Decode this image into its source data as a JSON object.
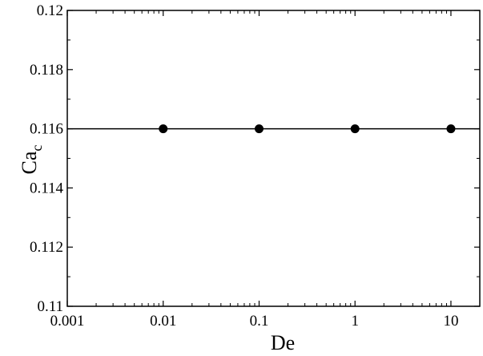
{
  "chart_data": {
    "type": "line",
    "title": "",
    "xlabel": "De",
    "ylabel": "Ca",
    "ylabel_subscript": "c",
    "xscale": "log",
    "xlim": [
      0.001,
      20
    ],
    "ylim": [
      0.11,
      0.12
    ],
    "x_ticks": [
      0.001,
      0.01,
      0.1,
      1,
      10
    ],
    "x_tick_labels": [
      "0.001",
      "0.01",
      "0.1",
      "1",
      "10"
    ],
    "y_ticks": [
      0.11,
      0.112,
      0.114,
      0.116,
      0.118,
      0.12
    ],
    "y_tick_labels": [
      "0.11",
      "0.112",
      "0.114",
      "0.116",
      "0.118",
      "0.12"
    ],
    "series": [
      {
        "x": [
          0.01,
          0.1,
          1,
          10
        ],
        "y": [
          0.116,
          0.116,
          0.116,
          0.116
        ],
        "marker": "filled-circle",
        "color": "#000000"
      }
    ],
    "reference_line": {
      "y": 0.116,
      "color": "#000000",
      "style": "solid"
    },
    "grid": false,
    "legend": "none"
  }
}
